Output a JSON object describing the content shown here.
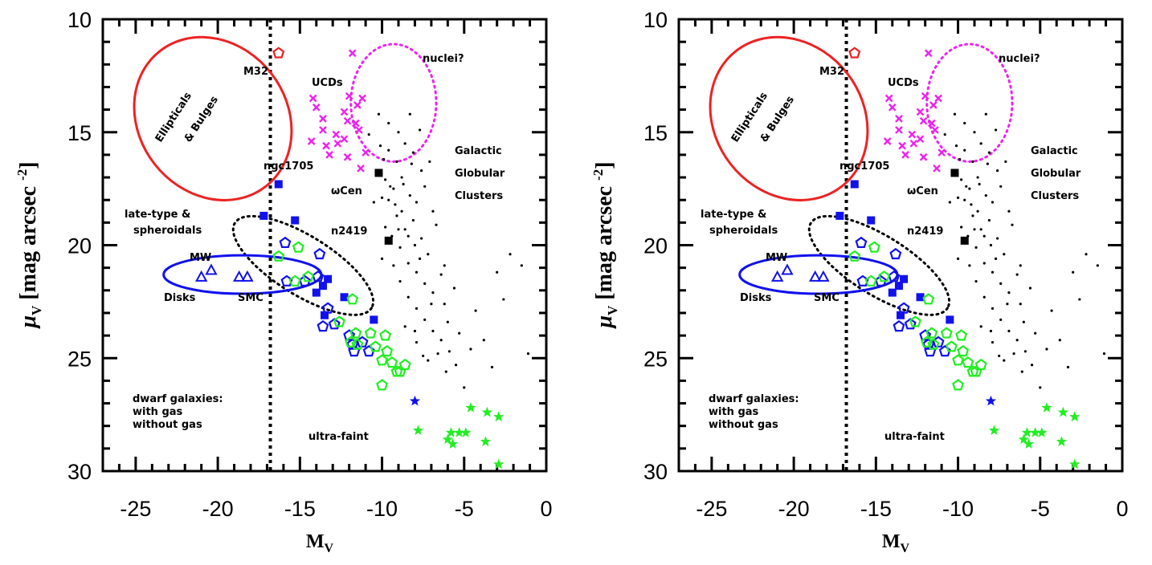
{
  "chart_data": [
    {
      "type": "scatter",
      "xlabel": "M",
      "xlabel_sub": "V",
      "ylabel_mu": "μ",
      "ylabel_sub": "V",
      "ylabel_text": "[mag arcsec",
      "ylabel_exp": "-2",
      "ylabel_close": "]",
      "xlim": [
        -27,
        0
      ],
      "ylim": [
        30,
        10
      ],
      "x_ticks": [
        "-25",
        "-20",
        "-15",
        "-10",
        "-5",
        "0"
      ],
      "y_ticks": [
        "10",
        "15",
        "20",
        "25",
        "30"
      ],
      "vline_x": -16.8,
      "annotations": {
        "m32": "M32",
        "ucds": "UCDs",
        "nuclei": "nuclei?",
        "ellipticals_1": "Ellipticals",
        "ellipticals_2": "& Bulges",
        "ngc1705": "ngc1705",
        "wcen": "ωCen",
        "galactic": "Galactic",
        "globular": "Globular",
        "clusters": "Clusters",
        "late_type": "late-type &",
        "spheroidals": "spheroidals",
        "n2419": "n2419",
        "mw": "MW",
        "disks": "Disks",
        "smc": "SMC",
        "dwarf_title": "dwarf galaxies:",
        "with_gas": "with gas",
        "without_gas": "without gas",
        "ultra_faint": "ultra-faint"
      },
      "colors": {
        "ellipse_red": "#ee2222",
        "magenta": "#ee22ee",
        "blue": "#1111ee",
        "green": "#22ee22",
        "black": "#000000"
      },
      "series": [
        {
          "name": "M32",
          "marker": "pentagon",
          "color": "#ee2222",
          "points": [
            [
              -16.3,
              11.5
            ]
          ]
        },
        {
          "name": "UCDs",
          "marker": "x",
          "color": "#ee22ee",
          "points": [
            [
              -11.8,
              11.5
            ],
            [
              -14.2,
              13.5
            ],
            [
              -14.0,
              13.9
            ],
            [
              -12.0,
              13.4
            ],
            [
              -11.5,
              13.8
            ],
            [
              -11.2,
              13.5
            ],
            [
              -12.3,
              14.1
            ],
            [
              -13.6,
              14.4
            ],
            [
              -12.1,
              14.5
            ],
            [
              -11.6,
              14.6
            ],
            [
              -13.6,
              14.9
            ],
            [
              -12.8,
              15.1
            ],
            [
              -12.3,
              15.3
            ],
            [
              -11.4,
              14.9
            ],
            [
              -13.4,
              15.6
            ],
            [
              -14.3,
              15.4
            ],
            [
              -12.7,
              15.5
            ],
            [
              -11.0,
              15.9
            ],
            [
              -13.2,
              16.0
            ],
            [
              -12.1,
              16.1
            ],
            [
              -11.3,
              16.6
            ]
          ]
        },
        {
          "name": "Galactic Globular Clusters",
          "marker": "dot",
          "color": "#000000",
          "points": [
            [
              -10.2,
              14.2
            ],
            [
              -9.6,
              14.6
            ],
            [
              -9.0,
              15.0
            ],
            [
              -8.3,
              14.2
            ],
            [
              -7.7,
              14.9
            ],
            [
              -10.8,
              15.1
            ],
            [
              -10.1,
              15.6
            ],
            [
              -9.6,
              15.8
            ],
            [
              -9.1,
              16.3
            ],
            [
              -8.6,
              15.5
            ],
            [
              -8.1,
              15.9
            ],
            [
              -7.6,
              16.7
            ],
            [
              -7.1,
              16.3
            ],
            [
              -10.3,
              16.7
            ],
            [
              -9.8,
              17.1
            ],
            [
              -9.3,
              17.5
            ],
            [
              -8.8,
              17.0
            ],
            [
              -8.3,
              17.8
            ],
            [
              -7.9,
              18.1
            ],
            [
              -7.4,
              17.4
            ],
            [
              -6.9,
              18.5
            ],
            [
              -9.6,
              18.0
            ],
            [
              -9.1,
              18.7
            ],
            [
              -8.6,
              19.3
            ],
            [
              -8.1,
              18.9
            ],
            [
              -7.6,
              19.7
            ],
            [
              -7.2,
              20.4
            ],
            [
              -6.7,
              19.1
            ],
            [
              -6.2,
              20.9
            ],
            [
              -9.4,
              19.6
            ],
            [
              -8.9,
              20.1
            ],
            [
              -8.4,
              20.8
            ],
            [
              -7.9,
              21.2
            ],
            [
              -7.4,
              21.7
            ],
            [
              -6.9,
              22.1
            ],
            [
              -6.4,
              21.3
            ],
            [
              -8.9,
              21.6
            ],
            [
              -8.4,
              22.3
            ],
            [
              -7.9,
              22.8
            ],
            [
              -7.4,
              23.3
            ],
            [
              -6.9,
              23.8
            ],
            [
              -6.4,
              24.2
            ],
            [
              -5.9,
              24.7
            ],
            [
              -8.6,
              23.6
            ],
            [
              -7.9,
              24.3
            ],
            [
              -7.2,
              25.1
            ],
            [
              -6.6,
              24.8
            ],
            [
              -6.1,
              25.6
            ],
            [
              -5.5,
              25.3
            ],
            [
              -5.0,
              26.3
            ],
            [
              -4.6,
              24.6
            ],
            [
              -10.0,
              17.9
            ],
            [
              -9.5,
              17.4
            ],
            [
              -9.2,
              18.2
            ],
            [
              -8.7,
              17.3
            ],
            [
              -8.2,
              16.4
            ],
            [
              -9.9,
              16.2
            ],
            [
              -8.4,
              19.6
            ],
            [
              -7.7,
              20.6
            ],
            [
              -3.0,
              21.2
            ],
            [
              -2.6,
              22.4
            ],
            [
              -2.2,
              20.4
            ],
            [
              -1.5,
              20.9
            ],
            [
              -1.1,
              24.8
            ],
            [
              -6.2,
              22.6
            ],
            [
              -5.6,
              21.9
            ],
            [
              -9.8,
              19.2
            ],
            [
              -10.5,
              18.1
            ],
            [
              -9.3,
              20.9
            ],
            [
              -7.0,
              22.6
            ],
            [
              -6.0,
              23.4
            ],
            [
              -8.0,
              23.8
            ],
            [
              -7.5,
              24.9
            ],
            [
              -5.3,
              23.9
            ],
            [
              -4.3,
              22.9
            ],
            [
              -3.8,
              24.2
            ],
            [
              -3.3,
              25.4
            ],
            [
              -9.0,
              19.3
            ],
            [
              -8.8,
              18.5
            ],
            [
              -10.0,
              20.6
            ],
            [
              -8.0,
              20.0
            ]
          ]
        },
        {
          "name": "late-type blue",
          "marker": "square",
          "color": "#1111ee",
          "points": [
            [
              -16.3,
              17.3
            ],
            [
              -17.2,
              18.7
            ],
            [
              -15.3,
              18.9
            ],
            [
              -13.6,
              21.8
            ],
            [
              -13.3,
              21.5
            ],
            [
              -14.0,
              22.1
            ],
            [
              -12.3,
              22.3
            ],
            [
              -13.5,
              23.1
            ],
            [
              -10.5,
              23.3
            ]
          ]
        },
        {
          "name": "spheroidals-blue",
          "marker": "pentagon",
          "color": "#1111ee",
          "points": [
            [
              -15.9,
              19.9
            ],
            [
              -13.8,
              20.4
            ],
            [
              -14.7,
              21.6
            ],
            [
              -15.8,
              21.6
            ],
            [
              -13.9,
              21.4
            ],
            [
              -13.3,
              22.8
            ],
            [
              -12.9,
              23.5
            ],
            [
              -12.0,
              24.0
            ],
            [
              -11.2,
              24.3
            ],
            [
              -11.8,
              24.4
            ],
            [
              -10.8,
              24.7
            ],
            [
              -11.7,
              24.7
            ],
            [
              -13.6,
              23.6
            ]
          ]
        },
        {
          "name": "MW SMC",
          "marker": "triangle",
          "color": "#1111ee",
          "points": [
            [
              -20.4,
              21.1
            ],
            [
              -21.0,
              21.4
            ],
            [
              -18.7,
              21.4
            ],
            [
              -18.2,
              21.4
            ]
          ]
        },
        {
          "name": "without gas",
          "marker": "pentagon",
          "color": "#22ee22",
          "points": [
            [
              -16.3,
              20.5
            ],
            [
              -15.1,
              20.1
            ],
            [
              -15.3,
              21.6
            ],
            [
              -11.8,
              22.4
            ],
            [
              -12.6,
              23.4
            ],
            [
              -11.6,
              23.9
            ],
            [
              -10.7,
              23.9
            ],
            [
              -9.8,
              24.0
            ],
            [
              -11.5,
              24.4
            ],
            [
              -10.4,
              24.5
            ],
            [
              -9.7,
              24.7
            ],
            [
              -11.9,
              24.3
            ],
            [
              -10.0,
              25.1
            ],
            [
              -9.4,
              25.2
            ],
            [
              -9.1,
              25.6
            ],
            [
              -8.6,
              25.3
            ],
            [
              -8.9,
              25.6
            ],
            [
              -10.0,
              26.2
            ],
            [
              -14.5,
              21.4
            ]
          ]
        },
        {
          "name": "ultra-faint blue",
          "marker": "star",
          "color": "#1111ee",
          "points": [
            [
              -8.0,
              26.9
            ]
          ]
        },
        {
          "name": "ultra-faint green",
          "marker": "star",
          "color": "#22ee22",
          "points": [
            [
              -7.8,
              28.2
            ],
            [
              -4.6,
              27.2
            ],
            [
              -3.6,
              27.4
            ],
            [
              -2.9,
              27.6
            ],
            [
              -5.8,
              28.3
            ],
            [
              -5.3,
              28.3
            ],
            [
              -4.9,
              28.3
            ],
            [
              -6.0,
              28.6
            ],
            [
              -5.7,
              28.8
            ],
            [
              -3.7,
              28.7
            ],
            [
              -2.9,
              29.7
            ]
          ]
        },
        {
          "name": "named black squares",
          "marker": "square",
          "color": "#000000",
          "points": [
            [
              -10.2,
              16.8
            ],
            [
              -9.6,
              19.8
            ]
          ]
        }
      ],
      "ellipses": [
        {
          "name": "Ellipticals & Bulges",
          "style": "solid",
          "color": "#ee2222",
          "cx": -20.3,
          "cy": 14.4,
          "rx": 4.5,
          "ry": 3.8,
          "rotation_deg": -38
        },
        {
          "name": "nuclei?",
          "style": "dotted",
          "color": "#ee22ee",
          "cx": -9.3,
          "cy": 13.7,
          "rx": 2.6,
          "ry": 2.6,
          "rotation_deg": 0
        },
        {
          "name": "late-type & spheroidals",
          "style": "dotted",
          "color": "#000000",
          "cx": -14.8,
          "cy": 20.9,
          "rx": 4.9,
          "ry": 1.3,
          "rotation_deg": 32
        },
        {
          "name": "MW Disks",
          "style": "solid",
          "color": "#1111ee",
          "cx": -18.5,
          "cy": 21.3,
          "rx": 4.8,
          "ry": 0.85,
          "rotation_deg": 0
        }
      ]
    }
  ]
}
